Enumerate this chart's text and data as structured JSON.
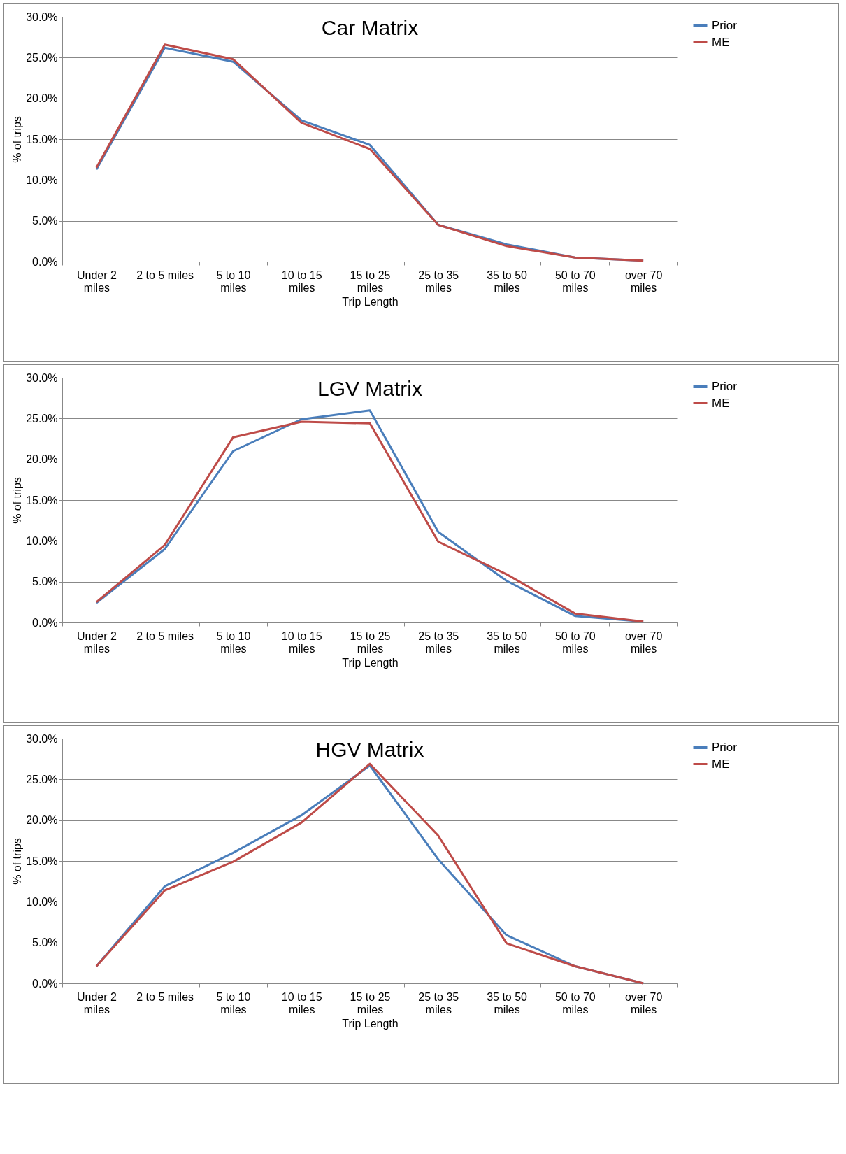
{
  "chart_data": [
    {
      "type": "line",
      "title": "Car Matrix",
      "xlabel": "Trip Length",
      "ylabel": "% of trips",
      "categories": [
        "Under 2 miles",
        "2 to 5 miles",
        "5 to 10 miles",
        "10 to 15 miles",
        "15 to 25 miles",
        "25 to 35 miles",
        "35 to 50 miles",
        "50 to 70 miles",
        "over 70 miles"
      ],
      "series": [
        {
          "name": "Prior",
          "color": "#4a7ebb",
          "values": [
            11.3,
            26.2,
            24.5,
            17.3,
            14.3,
            4.5,
            2.1,
            0.5,
            0.1
          ]
        },
        {
          "name": "ME",
          "color": "#be4b48",
          "values": [
            11.5,
            26.6,
            24.8,
            17.0,
            13.8,
            4.5,
            1.9,
            0.5,
            0.1
          ]
        }
      ],
      "ylim": [
        0,
        30
      ],
      "yticks": [
        {
          "value": 0,
          "label": "0.0%"
        },
        {
          "value": 5,
          "label": "5.0%"
        },
        {
          "value": 10,
          "label": "10.0%"
        },
        {
          "value": 15,
          "label": "15.0%"
        },
        {
          "value": 20,
          "label": "20.0%"
        },
        {
          "value": 25,
          "label": "25.0%"
        },
        {
          "value": 30,
          "label": "30.0%"
        }
      ],
      "grid": "y",
      "legend": "right"
    },
    {
      "type": "line",
      "title": "LGV Matrix",
      "xlabel": "Trip Length",
      "ylabel": "% of trips",
      "categories": [
        "Under 2 miles",
        "2 to 5 miles",
        "5 to 10 miles",
        "10 to 15 miles",
        "15 to 25 miles",
        "25 to 35 miles",
        "35 to 50 miles",
        "50 to 70 miles",
        "over 70 miles"
      ],
      "series": [
        {
          "name": "Prior",
          "color": "#4a7ebb",
          "values": [
            2.4,
            9.0,
            21.0,
            24.9,
            26.0,
            11.1,
            5.1,
            0.8,
            0.1
          ]
        },
        {
          "name": "ME",
          "color": "#be4b48",
          "values": [
            2.5,
            9.5,
            22.7,
            24.6,
            24.4,
            9.9,
            5.9,
            1.1,
            0.1
          ]
        }
      ],
      "ylim": [
        0,
        30
      ],
      "yticks": [
        {
          "value": 0,
          "label": "0.0%"
        },
        {
          "value": 5,
          "label": "5.0%"
        },
        {
          "value": 10,
          "label": "10.0%"
        },
        {
          "value": 15,
          "label": "15.0%"
        },
        {
          "value": 20,
          "label": "20.0%"
        },
        {
          "value": 25,
          "label": "25.0%"
        },
        {
          "value": 30,
          "label": "30.0%"
        }
      ],
      "grid": "y",
      "legend": "right"
    },
    {
      "type": "line",
      "title": "HGV Matrix",
      "xlabel": "Trip Length",
      "ylabel": "% of trips",
      "categories": [
        "Under 2 miles",
        "2 to 5 miles",
        "5 to 10 miles",
        "10 to 15 miles",
        "15 to 25 miles",
        "25 to 35 miles",
        "35 to 50 miles",
        "50 to 70 miles",
        "over 70 miles"
      ],
      "series": [
        {
          "name": "Prior",
          "color": "#4a7ebb",
          "values": [
            2.1,
            11.9,
            16.0,
            20.6,
            26.7,
            15.2,
            5.9,
            2.1,
            0.0
          ]
        },
        {
          "name": "ME",
          "color": "#be4b48",
          "values": [
            2.1,
            11.4,
            14.9,
            19.7,
            26.9,
            18.1,
            4.9,
            2.1,
            0.0
          ]
        }
      ],
      "ylim": [
        0,
        30
      ],
      "yticks": [
        {
          "value": 0,
          "label": "0.0%"
        },
        {
          "value": 5,
          "label": "5.0%"
        },
        {
          "value": 10,
          "label": "10.0%"
        },
        {
          "value": 15,
          "label": "15.0%"
        },
        {
          "value": 20,
          "label": "20.0%"
        },
        {
          "value": 25,
          "label": "25.0%"
        },
        {
          "value": 30,
          "label": "30.0%"
        }
      ],
      "grid": "y",
      "legend": "right"
    }
  ]
}
